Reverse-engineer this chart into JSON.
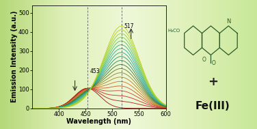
{
  "xlim": [
    350,
    600
  ],
  "ylim": [
    0,
    540
  ],
  "xlabel": "Wavelength (nm)",
  "ylabel": "Emission Intensity (a.u.)",
  "xticks": [
    400,
    450,
    500,
    550,
    600
  ],
  "yticks": [
    0,
    100,
    200,
    300,
    400,
    500
  ],
  "peak1_wl": 453,
  "peak2_wl": 517,
  "n_curves": 20,
  "bg_grad_top": "#e8f5cc",
  "bg_grad_bottom": "#b0d880",
  "axis_fontsize": 7,
  "tick_fontsize": 6,
  "label_fontsize": 6.5,
  "mol_color": "#2a5a2a",
  "curve_colors": [
    "#8B1010",
    "#B01515",
    "#CC2020",
    "#CC3B20",
    "#CC5520",
    "#CC7020",
    "#AA8020",
    "#888020",
    "#607020",
    "#3a7030",
    "#208060",
    "#20907a",
    "#20a090",
    "#20aaaa",
    "#30aa88",
    "#50bb66",
    "#70cc44",
    "#90cc30",
    "#aacc20",
    "#bbcc15"
  ]
}
